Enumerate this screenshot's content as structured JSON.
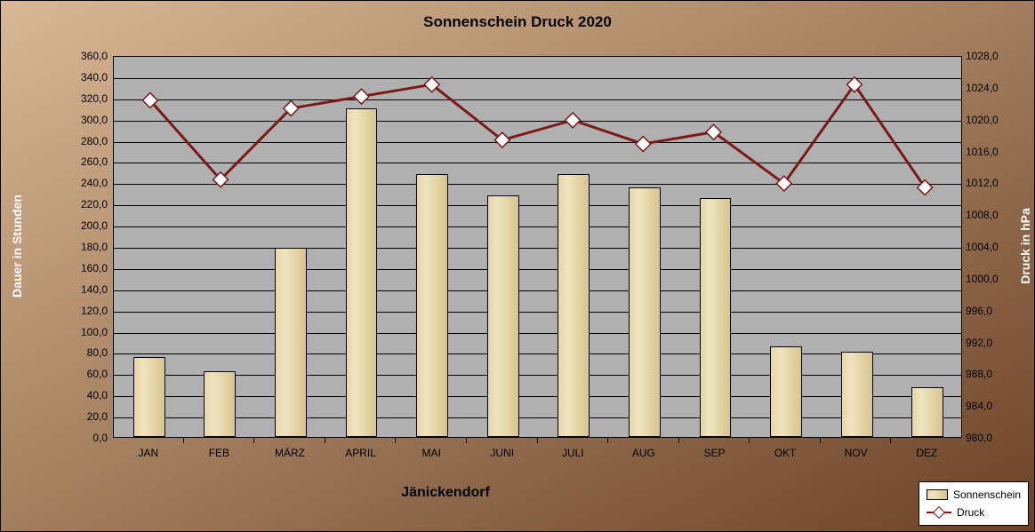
{
  "title": "Sonnenschein   Druck 2020",
  "subtitle": "Jänickendorf",
  "y_left": {
    "label": "Dauer in Stunden",
    "min": 0,
    "max": 360,
    "step": 20,
    "decimals": 1
  },
  "y_right": {
    "label": "Druck in hPa",
    "min": 980,
    "max": 1028,
    "step": 4,
    "decimals": 1
  },
  "categories": [
    "JAN",
    "FEB",
    "MÄRZ",
    "APRIL",
    "MAI",
    "JUNI",
    "JULI",
    "AUG",
    "SEP",
    "OKT",
    "NOV",
    "DEZ"
  ],
  "bars": {
    "label": "Sonnenschein",
    "values": [
      75,
      62,
      178,
      310,
      248,
      228,
      248,
      235,
      225,
      85,
      80,
      47
    ],
    "fill_gradient": [
      "#e8d5a8",
      "#f0e4c0",
      "#d8c48e"
    ],
    "border": "#000000",
    "width_frac": 0.45
  },
  "line": {
    "label": "Druck",
    "values": [
      1022.5,
      1012.5,
      1021.5,
      1023.0,
      1024.5,
      1017.5,
      1020.0,
      1017.0,
      1018.5,
      1012.0,
      1024.5,
      1011.5
    ],
    "stroke": "#7b1818",
    "stroke_width": 3,
    "marker_fill": "#ffffff",
    "marker_stroke": "#7b1818",
    "marker_size": 12
  },
  "plot": {
    "background": "#b0b0b0",
    "grid_color": "#000000"
  },
  "frame": {
    "bg_gradient": [
      "#d9b896",
      "#6b4226"
    ],
    "border": "#000000"
  },
  "typography": {
    "title_fontsize": 17,
    "axis_label_fontsize": 14,
    "tick_fontsize": 12,
    "legend_fontsize": 12
  },
  "legend": {
    "position": "bottom-right",
    "background": "#ffffff",
    "border": "#000000"
  }
}
